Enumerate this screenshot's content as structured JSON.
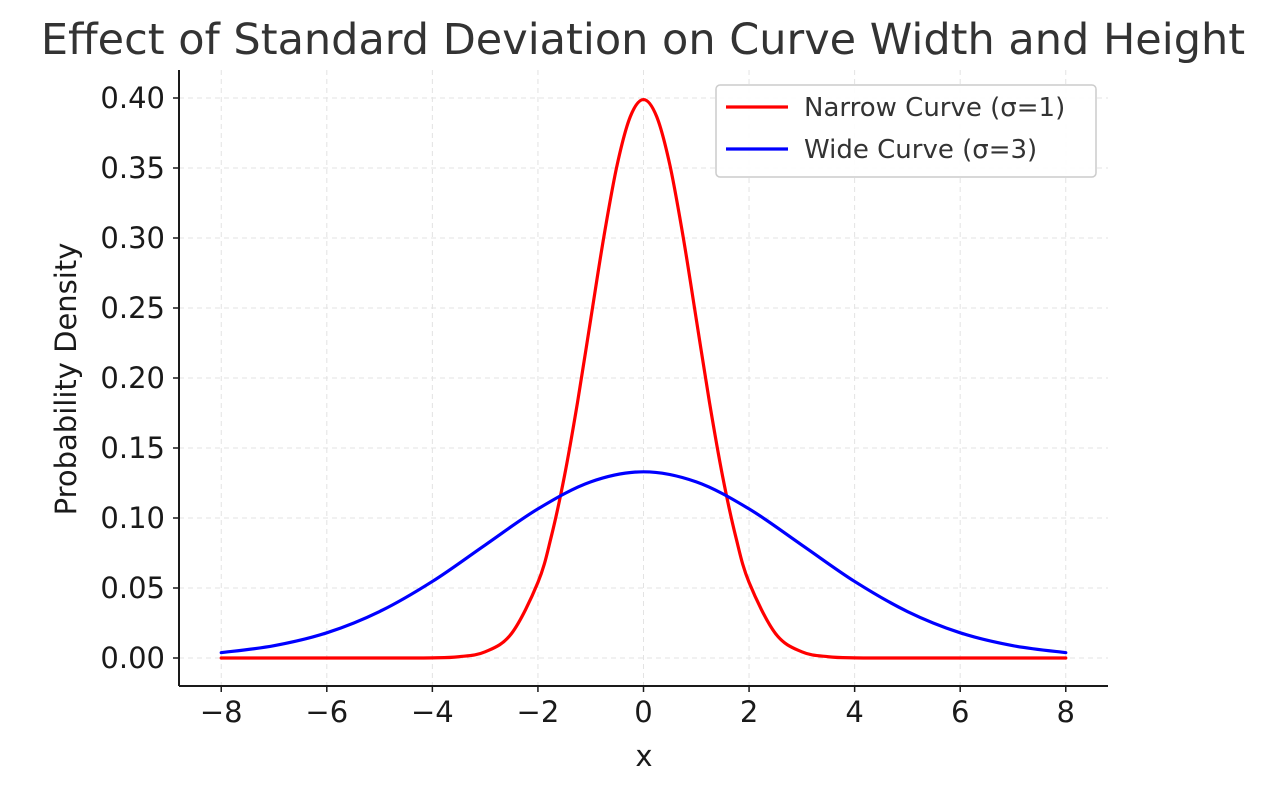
{
  "chart_data": {
    "type": "line",
    "title": "Effect of Standard Deviation on Curve Width and Height",
    "xlabel": "x",
    "ylabel": "Probability Density",
    "xlim": [
      -8.8,
      8.8
    ],
    "ylim": [
      -0.02,
      0.42
    ],
    "xticks": [
      -8,
      -6,
      -4,
      -2,
      0,
      2,
      4,
      6,
      8
    ],
    "xtick_labels": [
      "−8",
      "−6",
      "−4",
      "−2",
      "0",
      "2",
      "4",
      "6",
      "8"
    ],
    "yticks": [
      0.0,
      0.05,
      0.1,
      0.15,
      0.2,
      0.25,
      0.3,
      0.35,
      0.4
    ],
    "ytick_labels": [
      "0.00",
      "0.05",
      "0.10",
      "0.15",
      "0.20",
      "0.25",
      "0.30",
      "0.35",
      "0.40"
    ],
    "grid": true,
    "legend_position": "top-right",
    "series": [
      {
        "name": "Narrow Curve (σ=1)",
        "color": "#ff0000",
        "x": [
          -8,
          -7,
          -6,
          -5,
          -4,
          -3.5,
          -3,
          -2.5,
          -2,
          -1.75,
          -1.5,
          -1.25,
          -1,
          -0.75,
          -0.5,
          -0.25,
          0,
          0.25,
          0.5,
          0.75,
          1,
          1.25,
          1.5,
          1.75,
          2,
          2.5,
          3,
          3.5,
          4,
          5,
          6,
          7,
          8
        ],
        "y": [
          0.0,
          0.0,
          0.0,
          0.0,
          0.0001,
          0.0009,
          0.0044,
          0.0175,
          0.054,
          0.0863,
          0.1295,
          0.1826,
          0.242,
          0.3011,
          0.3521,
          0.3867,
          0.3989,
          0.3867,
          0.3521,
          0.3011,
          0.242,
          0.1826,
          0.1295,
          0.0863,
          0.054,
          0.0175,
          0.0044,
          0.0009,
          0.0001,
          0.0,
          0.0,
          0.0,
          0.0
        ]
      },
      {
        "name": "Wide Curve (σ=3)",
        "color": "#0000ff",
        "x": [
          -8,
          -7,
          -6,
          -5,
          -4,
          -3,
          -2,
          -1,
          0,
          1,
          2,
          3,
          4,
          5,
          6,
          7,
          8
        ],
        "y": [
          0.0038,
          0.0088,
          0.018,
          0.0332,
          0.0547,
          0.0807,
          0.1065,
          0.1258,
          0.133,
          0.1258,
          0.1065,
          0.0807,
          0.0547,
          0.0332,
          0.018,
          0.0088,
          0.0038
        ]
      }
    ]
  }
}
